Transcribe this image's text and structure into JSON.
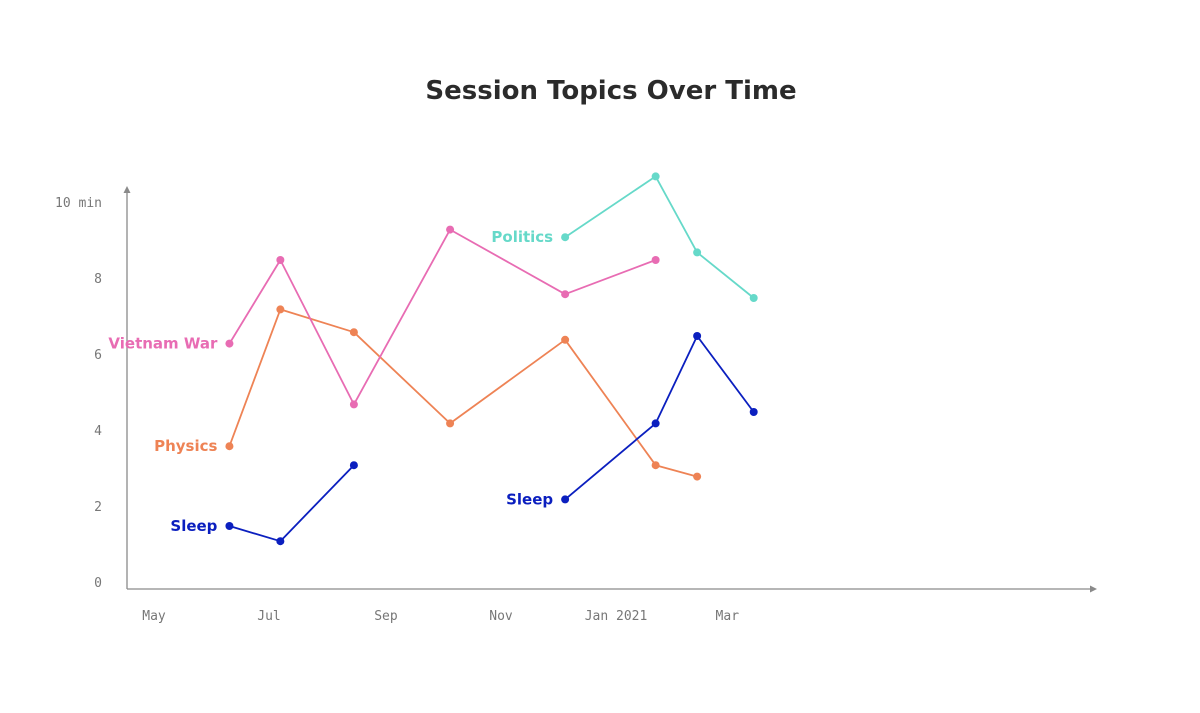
{
  "chart_data": {
    "type": "line",
    "title": "Session Topics Over Time",
    "xlabel": "",
    "ylabel": "",
    "x_ticks": [
      "May",
      "Jul",
      "Sep",
      "Nov",
      "Jan 2021",
      "Mar"
    ],
    "y_ticks": [
      "0",
      "2",
      "4",
      "6",
      "8",
      "10 min"
    ],
    "ylim": [
      0,
      10
    ],
    "grid": false,
    "series": [
      {
        "name": "Sleep",
        "color": "#0b1fbf",
        "points": [
          {
            "x": "2020-06-10",
            "y": 1.5
          },
          {
            "x": "2020-07-07",
            "y": 1.1
          },
          {
            "x": "2020-08-15",
            "y": 3.1
          }
        ]
      },
      {
        "name": "Physics",
        "color": "#ee8355",
        "points": [
          {
            "x": "2020-06-10",
            "y": 3.6
          },
          {
            "x": "2020-07-07",
            "y": 7.2
          },
          {
            "x": "2020-08-15",
            "y": 6.6
          },
          {
            "x": "2020-10-05",
            "y": 4.2
          },
          {
            "x": "2020-12-05",
            "y": 6.4
          },
          {
            "x": "2021-01-22",
            "y": 3.1
          },
          {
            "x": "2021-02-13",
            "y": 2.8
          }
        ]
      },
      {
        "name": "Vietnam War",
        "color": "#e86cb3",
        "points": [
          {
            "x": "2020-06-10",
            "y": 6.3
          },
          {
            "x": "2020-07-07",
            "y": 8.5
          },
          {
            "x": "2020-08-15",
            "y": 4.7
          },
          {
            "x": "2020-10-05",
            "y": 9.3
          },
          {
            "x": "2020-12-05",
            "y": 7.6
          },
          {
            "x": "2021-01-22",
            "y": 8.5
          }
        ]
      },
      {
        "name": "Sleep",
        "color": "#0b1fbf",
        "points": [
          {
            "x": "2020-12-05",
            "y": 2.2
          },
          {
            "x": "2021-01-22",
            "y": 4.2
          },
          {
            "x": "2021-02-13",
            "y": 6.5
          },
          {
            "x": "2021-03-15",
            "y": 4.5
          }
        ]
      },
      {
        "name": "Politics",
        "color": "#66d9c9",
        "points": [
          {
            "x": "2020-12-05",
            "y": 9.1
          },
          {
            "x": "2021-01-22",
            "y": 10.7
          },
          {
            "x": "2021-02-13",
            "y": 8.7
          },
          {
            "x": "2021-03-15",
            "y": 7.5
          }
        ]
      }
    ]
  }
}
